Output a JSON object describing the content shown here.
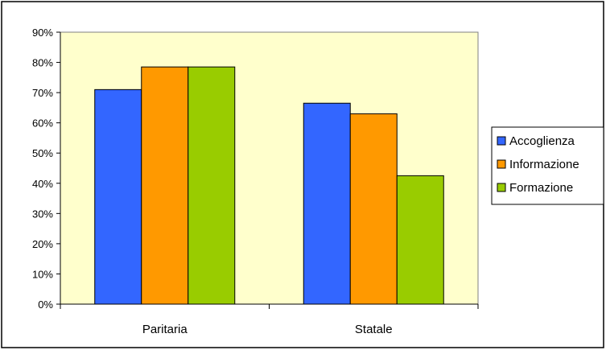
{
  "chart_data": {
    "type": "bar",
    "categories": [
      "Paritaria",
      "Statale"
    ],
    "series": [
      {
        "name": "Accoglienza",
        "values": [
          71,
          66.5
        ],
        "color": "#3366ff"
      },
      {
        "name": "Informazione",
        "values": [
          78.5,
          63
        ],
        "color": "#ff9900"
      },
      {
        "name": "Formazione",
        "values": [
          78.5,
          42.5
        ],
        "color": "#99cc00"
      }
    ],
    "y_ticks": [
      "0%",
      "10%",
      "20%",
      "30%",
      "40%",
      "50%",
      "60%",
      "70%",
      "80%",
      "90%"
    ],
    "ylim": [
      0,
      90
    ],
    "grid": false,
    "legend_position": "right",
    "plot_background": "#ffffcc"
  }
}
